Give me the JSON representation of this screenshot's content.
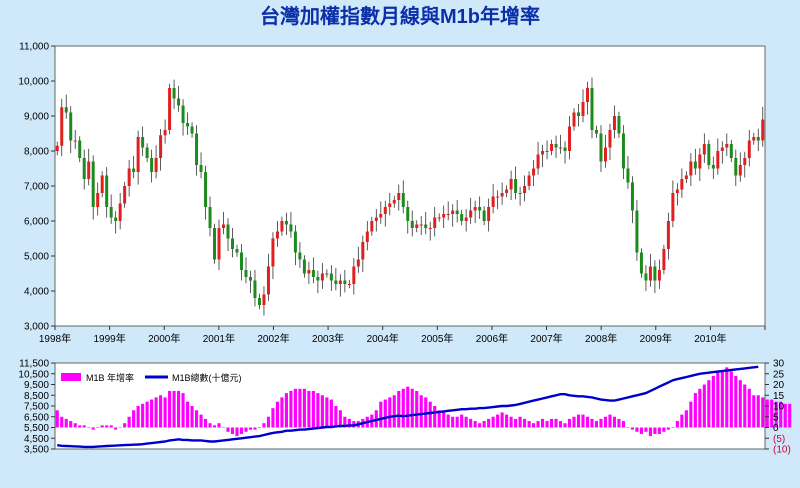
{
  "title": "台灣加權指數月線與M1b年增率",
  "colors": {
    "background": "#cfe9fb",
    "plot_bg": "#ffffff",
    "title": "#0b2fa8",
    "up": "#e02020",
    "down": "#1d8a1d",
    "wick": "#333333",
    "m1b_bar": "#ff00ff",
    "m1b_line": "#0000cc",
    "negative_label": "#cc0033"
  },
  "chart_data": [
    {
      "type": "candlestick",
      "title": "台灣加權指數月線與M1b年增率",
      "x_tick_labels": [
        "1998年",
        "1999年",
        "2000年",
        "2001年",
        "2002年",
        "2003年",
        "2004年",
        "2005年",
        "2006年",
        "2007年",
        "2008年",
        "2009年",
        "2010年"
      ],
      "y_tick_labels": [
        "3,000",
        "4,000",
        "5,000",
        "6,000",
        "7,000",
        "8,000",
        "9,000",
        "10,000",
        "11,000"
      ],
      "ylim": [
        3000,
        11000
      ],
      "x_start": 1998.0,
      "x_end": 2011.0,
      "monthly_close": [
        8150,
        9250,
        9100,
        8300,
        8300,
        7800,
        7200,
        7700,
        6400,
        6800,
        7300,
        6400,
        6100,
        6000,
        6500,
        7000,
        7500,
        7400,
        8400,
        8100,
        7800,
        7400,
        7800,
        8450,
        8600,
        9800,
        9500,
        9300,
        8800,
        8700,
        8500,
        7600,
        7400,
        6400,
        5800,
        4900,
        5800,
        5900,
        5500,
        5200,
        5100,
        4600,
        4400,
        4300,
        3800,
        3600,
        3900,
        4700,
        5500,
        5700,
        6000,
        5900,
        5700,
        5100,
        4900,
        4500,
        4600,
        4400,
        4300,
        4500,
        4500,
        4300,
        4200,
        4300,
        4200,
        4200,
        4700,
        4900,
        5400,
        5700,
        6000,
        6100,
        6200,
        6400,
        6500,
        6600,
        6800,
        6400,
        6000,
        5800,
        5900,
        5900,
        5800,
        5800,
        6100,
        6100,
        6200,
        6200,
        6300,
        6200,
        6000,
        6100,
        6300,
        6400,
        6300,
        6000,
        6400,
        6700,
        6700,
        6800,
        6900,
        7200,
        6800,
        6800,
        7000,
        7300,
        7500,
        7900,
        8000,
        8000,
        8200,
        8100,
        8100,
        8000,
        8700,
        9100,
        9000,
        9400,
        9800,
        8600,
        8500,
        7700,
        8100,
        8600,
        9000,
        8500,
        7500,
        7100,
        6300,
        5100,
        4500,
        4300,
        4700,
        4300,
        4600,
        5200,
        6000,
        6800,
        6900,
        7200,
        7300,
        7700,
        7500,
        7900,
        8200,
        7600,
        7500,
        8000,
        8100,
        8200,
        7800,
        7300,
        7600,
        7800,
        8300,
        8400,
        8300,
        8900
      ],
      "ylabel": "",
      "xlabel": ""
    },
    {
      "type": "bar+line",
      "series": [
        {
          "name": "M1B 年增率",
          "type": "bar",
          "axis": "right",
          "values": [
            8,
            5,
            4,
            3,
            2,
            1,
            1,
            0,
            -1,
            0,
            1,
            1,
            1,
            -1,
            0,
            2,
            5,
            8,
            10,
            11,
            12,
            13,
            14,
            15,
            14,
            17,
            17,
            17,
            16,
            12,
            10,
            8,
            6,
            4,
            2,
            1,
            2,
            0,
            -2,
            -3,
            -4,
            -3,
            -2,
            -1,
            -1,
            0,
            2,
            5,
            9,
            12,
            14,
            16,
            17,
            18,
            18,
            18,
            17,
            17,
            16,
            15,
            14,
            13,
            10,
            8,
            5,
            4,
            3,
            3,
            4,
            5,
            6,
            8,
            12,
            13,
            14,
            15,
            17,
            18,
            19,
            18,
            17,
            15,
            14,
            12,
            10,
            8,
            7,
            6,
            5,
            5,
            6,
            5,
            4,
            3,
            2,
            3,
            4,
            5,
            6,
            7,
            6,
            5,
            4,
            5,
            4,
            3,
            2,
            3,
            4,
            3,
            4,
            4,
            3,
            2,
            4,
            5,
            6,
            6,
            5,
            4,
            3,
            4,
            5,
            6,
            5,
            4,
            3,
            0,
            -1,
            -2,
            -3,
            -2,
            -4,
            -3,
            -3,
            -2,
            -1,
            0,
            3,
            6,
            8,
            12,
            16,
            18,
            20,
            22,
            24,
            26,
            26,
            28,
            26,
            24,
            22,
            20,
            18,
            15,
            15,
            14,
            13,
            13,
            12,
            12,
            11,
            11
          ],
          "ylim": [
            -10,
            30
          ]
        },
        {
          "name": "M1B總數(十億元)",
          "type": "line",
          "axis": "left",
          "values": [
            3850,
            3800,
            3780,
            3760,
            3740,
            3720,
            3700,
            3700,
            3700,
            3720,
            3750,
            3780,
            3800,
            3820,
            3840,
            3860,
            3880,
            3900,
            3920,
            3950,
            4000,
            4050,
            4100,
            4150,
            4200,
            4300,
            4350,
            4400,
            4350,
            4350,
            4300,
            4300,
            4300,
            4250,
            4200,
            4200,
            4250,
            4300,
            4350,
            4400,
            4450,
            4500,
            4550,
            4600,
            4650,
            4700,
            4800,
            4900,
            5000,
            5050,
            5100,
            5200,
            5200,
            5250,
            5300,
            5300,
            5350,
            5400,
            5450,
            5500,
            5550,
            5550,
            5600,
            5650,
            5650,
            5700,
            5700,
            5800,
            5900,
            6000,
            6100,
            6200,
            6300,
            6400,
            6500,
            6550,
            6600,
            6550,
            6600,
            6650,
            6700,
            6750,
            6800,
            6850,
            6900,
            6950,
            7000,
            7050,
            7100,
            7150,
            7200,
            7200,
            7250,
            7250,
            7300,
            7300,
            7350,
            7400,
            7450,
            7500,
            7500,
            7550,
            7600,
            7700,
            7800,
            7900,
            8000,
            8100,
            8200,
            8300,
            8400,
            8500,
            8600,
            8600,
            8500,
            8450,
            8400,
            8400,
            8350,
            8300,
            8200,
            8100,
            8050,
            8000,
            8000,
            8100,
            8200,
            8300,
            8400,
            8500,
            8600,
            8700,
            8900,
            9100,
            9300,
            9500,
            9700,
            9900,
            10000,
            10100,
            10200,
            10300,
            10400,
            10500,
            10550,
            10600,
            10650,
            10700,
            10750,
            10800,
            10850,
            10900,
            10950,
            11000,
            11050,
            11100,
            11150
          ],
          "ylim": [
            3500,
            11500
          ]
        }
      ],
      "left_tick_labels": [
        "3,500",
        "4,500",
        "5,500",
        "6,500",
        "7,500",
        "8,500",
        "9,500",
        "10,500",
        "11,500"
      ],
      "right_tick_labels": [
        "30",
        "25",
        "20",
        "15",
        "10",
        "5",
        "0",
        "(5)",
        "(10)"
      ],
      "legend_position": "top-left"
    }
  ]
}
